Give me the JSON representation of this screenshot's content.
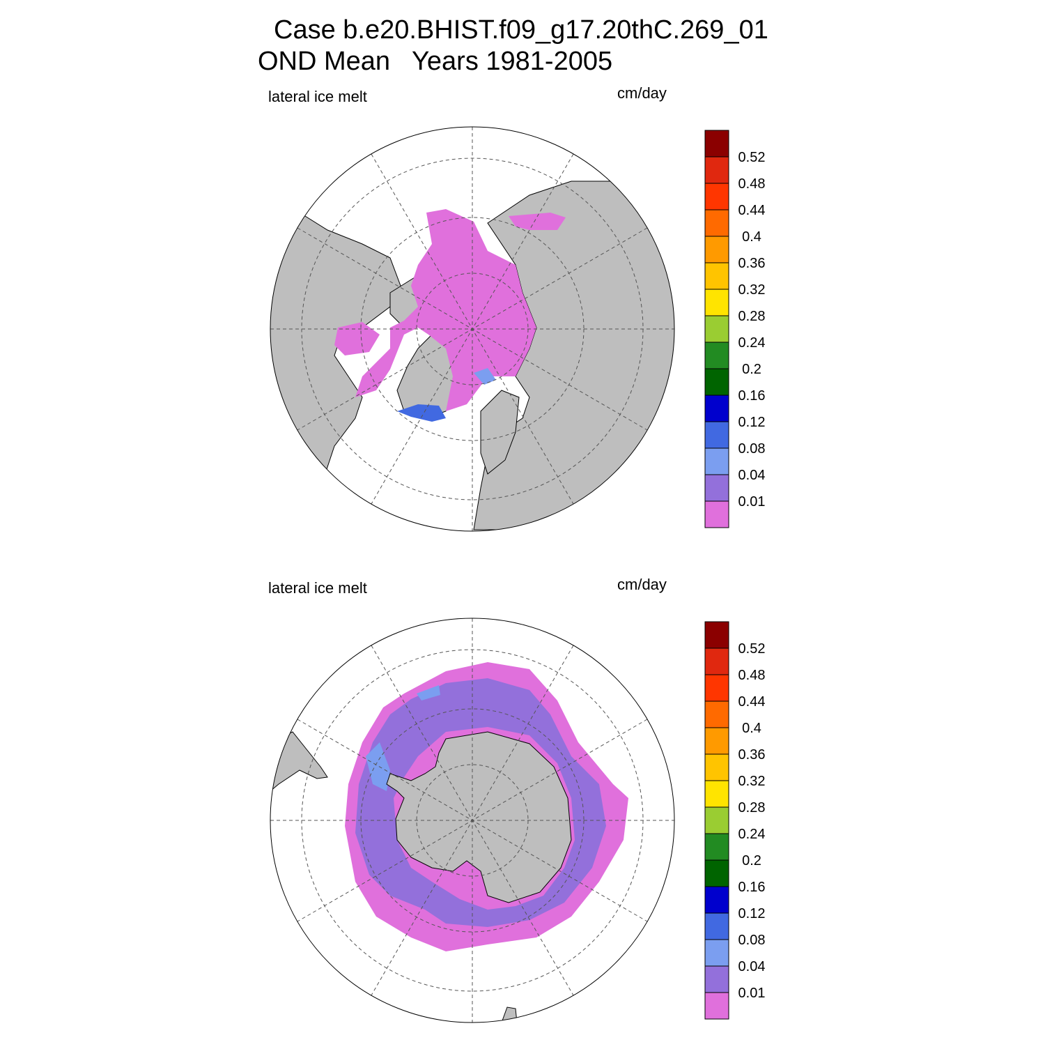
{
  "title": {
    "line1": "Case b.e20.BHIST.f09_g17.20thC.269_01",
    "line2": "OND Mean   Years 1981-2005"
  },
  "panels": [
    {
      "id": "north",
      "hemisphere": "Northern",
      "label": "lateral ice melt",
      "units": "cm/day"
    },
    {
      "id": "south",
      "hemisphere": "Southern",
      "label": "lateral ice melt",
      "units": "cm/day"
    }
  ],
  "colorbar": {
    "colors": [
      "#e070dc",
      "#9370db",
      "#7b9ef0",
      "#4169e1",
      "#0000cd",
      "#006400",
      "#228b22",
      "#9acd32",
      "#ffe400",
      "#ffc400",
      "#ff9a00",
      "#ff6a00",
      "#ff3600",
      "#e0280f",
      "#8b0000"
    ],
    "labels": [
      "0.01",
      "0.04",
      "0.08",
      "0.12",
      "0.16",
      "0.2",
      "0.24",
      "0.28",
      "0.32",
      "0.36",
      "0.4",
      "0.44",
      "0.48",
      "0.52"
    ]
  },
  "colors": {
    "land": "#bebebe",
    "ocean": "#ffffff",
    "ice_low": "#e070dc",
    "ice_mid": "#9370db",
    "ice_blue": "#7b9ef0"
  }
}
